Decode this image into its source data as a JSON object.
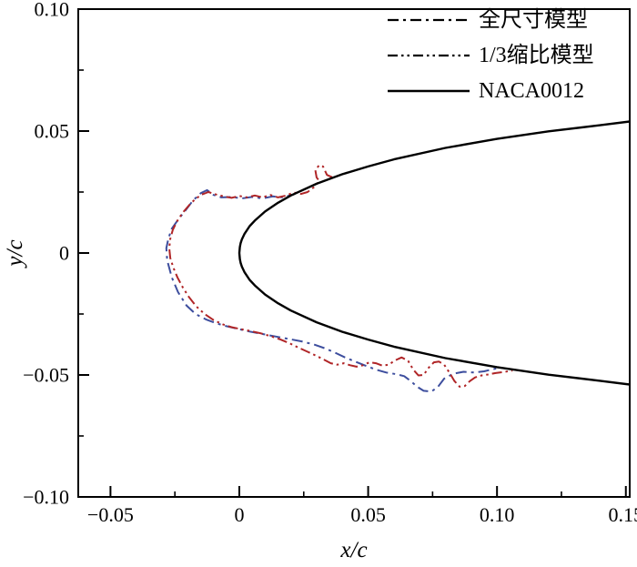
{
  "figure": {
    "background": "#ffffff"
  },
  "chart_data": {
    "type": "line",
    "title": "",
    "xlabel": "x/c",
    "ylabel": "y/c",
    "xlim": [
      -0.0625,
      0.1515
    ],
    "ylim": [
      -0.1,
      0.1
    ],
    "grid": false,
    "legend_position": "top-right-inside",
    "x_ticks": [
      {
        "v": -0.05,
        "label": "−0.05"
      },
      {
        "v": 0,
        "label": "0"
      },
      {
        "v": 0.05,
        "label": "0.05"
      },
      {
        "v": 0.1,
        "label": "0.10"
      },
      {
        "v": 0.15,
        "label": "0.15"
      }
    ],
    "x_minor_ticks": [
      -0.025,
      0.025,
      0.075,
      0.125
    ],
    "y_ticks": [
      {
        "v": -0.1,
        "label": "−0.10"
      },
      {
        "v": -0.05,
        "label": "−0.05"
      },
      {
        "v": 0,
        "label": "0"
      },
      {
        "v": 0.05,
        "label": "0.05"
      },
      {
        "v": 0.1,
        "label": "0.10"
      }
    ],
    "y_minor_ticks": [
      -0.075,
      -0.025,
      0.025,
      0.075
    ],
    "series": [
      {
        "name": "全尺寸模型",
        "line_style": "dash-dot",
        "color": "#3d4e9e",
        "dash": "12 5 3 5",
        "width": 2,
        "points": [
          [
            0.0225,
            0.0249
          ],
          [
            0.021,
            0.024
          ],
          [
            0.017,
            0.0228
          ],
          [
            0.013,
            0.0232
          ],
          [
            0.009,
            0.0224
          ],
          [
            0.005,
            0.023
          ],
          [
            0.001,
            0.0224
          ],
          [
            -0.003,
            0.023
          ],
          [
            -0.007,
            0.0228
          ],
          [
            -0.01,
            0.0238
          ],
          [
            -0.0125,
            0.0258
          ],
          [
            -0.015,
            0.0245
          ],
          [
            -0.018,
            0.0215
          ],
          [
            -0.0205,
            0.018
          ],
          [
            -0.0235,
            0.014
          ],
          [
            -0.0262,
            0.01
          ],
          [
            -0.0275,
            0.006
          ],
          [
            -0.0283,
            0.002
          ],
          [
            -0.028,
            -0.003
          ],
          [
            -0.0262,
            -0.01
          ],
          [
            -0.0238,
            -0.016
          ],
          [
            -0.0205,
            -0.0215
          ],
          [
            -0.017,
            -0.025
          ],
          [
            -0.013,
            -0.0272
          ],
          [
            -0.009,
            -0.0288
          ],
          [
            -0.005,
            -0.03
          ],
          [
            -0.001,
            -0.031
          ],
          [
            0.004,
            -0.0322
          ],
          [
            0.009,
            -0.0332
          ],
          [
            0.014,
            -0.0342
          ],
          [
            0.019,
            -0.0352
          ],
          [
            0.024,
            -0.0362
          ],
          [
            0.029,
            -0.0375
          ],
          [
            0.033,
            -0.039
          ],
          [
            0.037,
            -0.0408
          ],
          [
            0.041,
            -0.0428
          ],
          [
            0.045,
            -0.0445
          ],
          [
            0.049,
            -0.0462
          ],
          [
            0.053,
            -0.0478
          ],
          [
            0.057,
            -0.049
          ],
          [
            0.061,
            -0.0497
          ],
          [
            0.064,
            -0.0505
          ],
          [
            0.0665,
            -0.0525
          ],
          [
            0.069,
            -0.0548
          ],
          [
            0.0715,
            -0.0565
          ],
          [
            0.0745,
            -0.0568
          ],
          [
            0.077,
            -0.055
          ],
          [
            0.0795,
            -0.0515
          ],
          [
            0.083,
            -0.0495
          ],
          [
            0.087,
            -0.0487
          ],
          [
            0.091,
            -0.049
          ],
          [
            0.095,
            -0.0485
          ],
          [
            0.099,
            -0.0475
          ],
          [
            0.102,
            -0.047
          ]
        ]
      },
      {
        "name": "1/3缩比模型",
        "line_style": "dash-dot-dot",
        "color": "#b02527",
        "dash": "11 4 2.5 4 2.5 4",
        "width": 2,
        "points": [
          [
            0.036,
            0.0311
          ],
          [
            0.034,
            0.032
          ],
          [
            0.0325,
            0.0355
          ],
          [
            0.031,
            0.036
          ],
          [
            0.0295,
            0.034
          ],
          [
            0.03,
            0.031
          ],
          [
            0.031,
            0.0295
          ],
          [
            0.029,
            0.027
          ],
          [
            0.0265,
            0.025
          ],
          [
            0.024,
            0.0242
          ],
          [
            0.021,
            0.0248
          ],
          [
            0.018,
            0.0235
          ],
          [
            0.015,
            0.0228
          ],
          [
            0.012,
            0.0238
          ],
          [
            0.009,
            0.0228
          ],
          [
            0.006,
            0.0236
          ],
          [
            0.003,
            0.0228
          ],
          [
            0.0,
            0.0234
          ],
          [
            -0.003,
            0.0226
          ],
          [
            -0.006,
            0.0232
          ],
          [
            -0.009,
            0.024
          ],
          [
            -0.012,
            0.025
          ],
          [
            -0.0145,
            0.024
          ],
          [
            -0.017,
            0.0222
          ],
          [
            -0.0195,
            0.0196
          ],
          [
            -0.022,
            0.0165
          ],
          [
            -0.0242,
            0.013
          ],
          [
            -0.0258,
            0.0095
          ],
          [
            -0.0268,
            0.0058
          ],
          [
            -0.0272,
            0.002
          ],
          [
            -0.0268,
            -0.002
          ],
          [
            -0.0256,
            -0.006
          ],
          [
            -0.024,
            -0.01
          ],
          [
            -0.022,
            -0.014
          ],
          [
            -0.0196,
            -0.018
          ],
          [
            -0.0168,
            -0.0218
          ],
          [
            -0.0135,
            -0.025
          ],
          [
            -0.01,
            -0.0275
          ],
          [
            -0.0065,
            -0.0292
          ],
          [
            -0.003,
            -0.0304
          ],
          [
            0.0005,
            -0.0312
          ],
          [
            0.0045,
            -0.032
          ],
          [
            0.0085,
            -0.033
          ],
          [
            0.0125,
            -0.0342
          ],
          [
            0.016,
            -0.0355
          ],
          [
            0.0195,
            -0.037
          ],
          [
            0.023,
            -0.0388
          ],
          [
            0.0265,
            -0.0405
          ],
          [
            0.03,
            -0.0422
          ],
          [
            0.033,
            -0.0438
          ],
          [
            0.0355,
            -0.0452
          ],
          [
            0.038,
            -0.0458
          ],
          [
            0.0405,
            -0.0452
          ],
          [
            0.043,
            -0.046
          ],
          [
            0.0455,
            -0.0466
          ],
          [
            0.048,
            -0.046
          ],
          [
            0.0505,
            -0.0448
          ],
          [
            0.053,
            -0.0452
          ],
          [
            0.0555,
            -0.0462
          ],
          [
            0.058,
            -0.0458
          ],
          [
            0.0605,
            -0.044
          ],
          [
            0.063,
            -0.0428
          ],
          [
            0.0655,
            -0.0442
          ],
          [
            0.0675,
            -0.0478
          ],
          [
            0.0695,
            -0.0502
          ],
          [
            0.0715,
            -0.05
          ],
          [
            0.0735,
            -0.047
          ],
          [
            0.0755,
            -0.0448
          ],
          [
            0.0775,
            -0.0445
          ],
          [
            0.0795,
            -0.0458
          ],
          [
            0.0815,
            -0.049
          ],
          [
            0.0835,
            -0.0525
          ],
          [
            0.0855,
            -0.0548
          ],
          [
            0.0875,
            -0.0545
          ],
          [
            0.0895,
            -0.0525
          ],
          [
            0.0915,
            -0.051
          ],
          [
            0.094,
            -0.0502
          ],
          [
            0.0965,
            -0.0498
          ],
          [
            0.0995,
            -0.0492
          ],
          [
            0.1025,
            -0.0488
          ],
          [
            0.106,
            -0.0482
          ]
        ]
      },
      {
        "name": "NACA0012",
        "line_style": "solid",
        "color": "#000000",
        "dash": "",
        "width": 2.4,
        "points": [
          [
            0.1515,
            0.0539
          ],
          [
            0.14,
            0.0524
          ],
          [
            0.12,
            0.0499
          ],
          [
            0.1,
            0.0468
          ],
          [
            0.08,
            0.0431
          ],
          [
            0.06,
            0.0384
          ],
          [
            0.05,
            0.0355
          ],
          [
            0.04,
            0.0323
          ],
          [
            0.03,
            0.0284
          ],
          [
            0.02,
            0.0236
          ],
          [
            0.015,
            0.0206
          ],
          [
            0.01,
            0.017
          ],
          [
            0.006,
            0.0133
          ],
          [
            0.004,
            0.011
          ],
          [
            0.002,
            0.0078
          ],
          [
            0.001,
            0.0056
          ],
          [
            0.0005,
            0.004
          ],
          [
            0.0002,
            0.0025
          ],
          [
            0,
            0
          ],
          [
            0.0002,
            -0.0025
          ],
          [
            0.0005,
            -0.004
          ],
          [
            0.001,
            -0.0056
          ],
          [
            0.002,
            -0.0078
          ],
          [
            0.004,
            -0.011
          ],
          [
            0.006,
            -0.0133
          ],
          [
            0.01,
            -0.017
          ],
          [
            0.015,
            -0.0206
          ],
          [
            0.02,
            -0.0236
          ],
          [
            0.03,
            -0.0284
          ],
          [
            0.04,
            -0.0323
          ],
          [
            0.05,
            -0.0355
          ],
          [
            0.06,
            -0.0384
          ],
          [
            0.08,
            -0.0431
          ],
          [
            0.1,
            -0.0468
          ],
          [
            0.12,
            -0.0499
          ],
          [
            0.14,
            -0.0524
          ],
          [
            0.1515,
            -0.0539
          ]
        ]
      }
    ]
  }
}
